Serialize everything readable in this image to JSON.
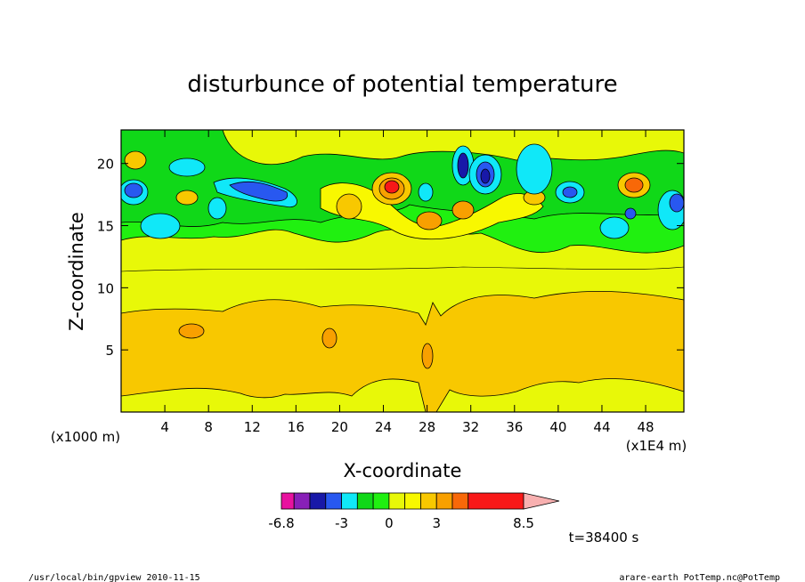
{
  "chart_data": {
    "type": "heatmap",
    "title": "disturbunce of potential temperature",
    "xlabel": "X-coordinate",
    "ylabel": "Z-coordinate",
    "x_unit_label": "(x1E4 m)",
    "y_unit_label": "(x1000 m)",
    "xlim": [
      0,
      51.5
    ],
    "ylim": [
      0,
      22.7
    ],
    "x_ticks": [
      4,
      8,
      12,
      16,
      20,
      24,
      28,
      32,
      36,
      40,
      44,
      48
    ],
    "y_ticks": [
      5,
      10,
      15,
      20
    ],
    "colorbar": {
      "labels": [
        "-6.8",
        "-3",
        "0",
        "3",
        "8.5"
      ],
      "label_values": [
        -6.8,
        -3,
        0,
        3,
        8.5
      ],
      "levels": [
        -6.8,
        -6,
        -5,
        -4,
        -3,
        -2,
        -1,
        0,
        1,
        2,
        3,
        4,
        5,
        8.5
      ],
      "colors": [
        "#e8129f",
        "#8820b8",
        "#1818a8",
        "#2858f0",
        "#10e8f8",
        "#10d818",
        "#20f010",
        "#e8f808",
        "#f8f800",
        "#f8c800",
        "#f8a000",
        "#f86808",
        "#f81818",
        "#f88078",
        "#f8b0b0"
      ]
    },
    "time_label": "t=38400 s"
  },
  "footer": {
    "left": "/usr/local/bin/gpview  2010-11-15",
    "right": "arare-earth_PotTemp.nc@PotTemp"
  }
}
